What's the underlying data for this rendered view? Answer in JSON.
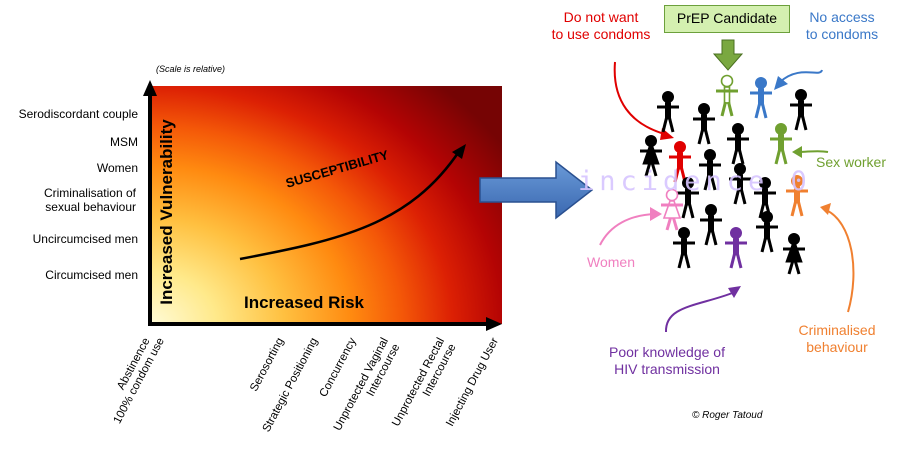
{
  "scale_note": "(Scale is relative)",
  "y_axis_title": "Increased Vulnerability",
  "x_axis_title": "Increased Risk",
  "curve_label": "SUSCEPTIBILITY",
  "y_items": [
    "Serodiscordant couple",
    "MSM",
    "Women",
    "Criminalisation of sexual behaviour",
    "Uncircumcised men",
    "Circumcised men"
  ],
  "x_items": [
    {
      "line1": "Abstinence",
      "line2": ""
    },
    {
      "line1": "100% condom use",
      "line2": ""
    },
    {
      "line1": "Serosorting",
      "line2": ""
    },
    {
      "line1": "Strategic Positioning",
      "line2": ""
    },
    {
      "line1": "Concurrency",
      "line2": ""
    },
    {
      "line1": "Unprotected Vaginal",
      "line2": "Intercourse"
    },
    {
      "line1": "Unprotected Rectal",
      "line2": "Intercourse"
    },
    {
      "line1": "Injecting Drug User",
      "line2": ""
    }
  ],
  "prep_candidate": "PrEP Candidate",
  "annotations": {
    "do_not_want": [
      "Do not want",
      "to use condoms"
    ],
    "no_access": [
      "No access",
      "to condoms"
    ],
    "sex_worker": "Sex worker",
    "women": "Women",
    "poor_knowledge": [
      "Poor knowledge of",
      "HIV transmission"
    ],
    "criminalised": [
      "Criminalised",
      "behaviour"
    ]
  },
  "watermark": "incidence 0",
  "credit": "© Roger Tatoud",
  "colors": {
    "red": "#e00000",
    "blue": "#3a78c8",
    "green": "#70a030",
    "pink": "#f080c0",
    "purple": "#7030a0",
    "orange": "#f08030",
    "arrow_blue": "#4a7ac0",
    "black": "#000000"
  }
}
